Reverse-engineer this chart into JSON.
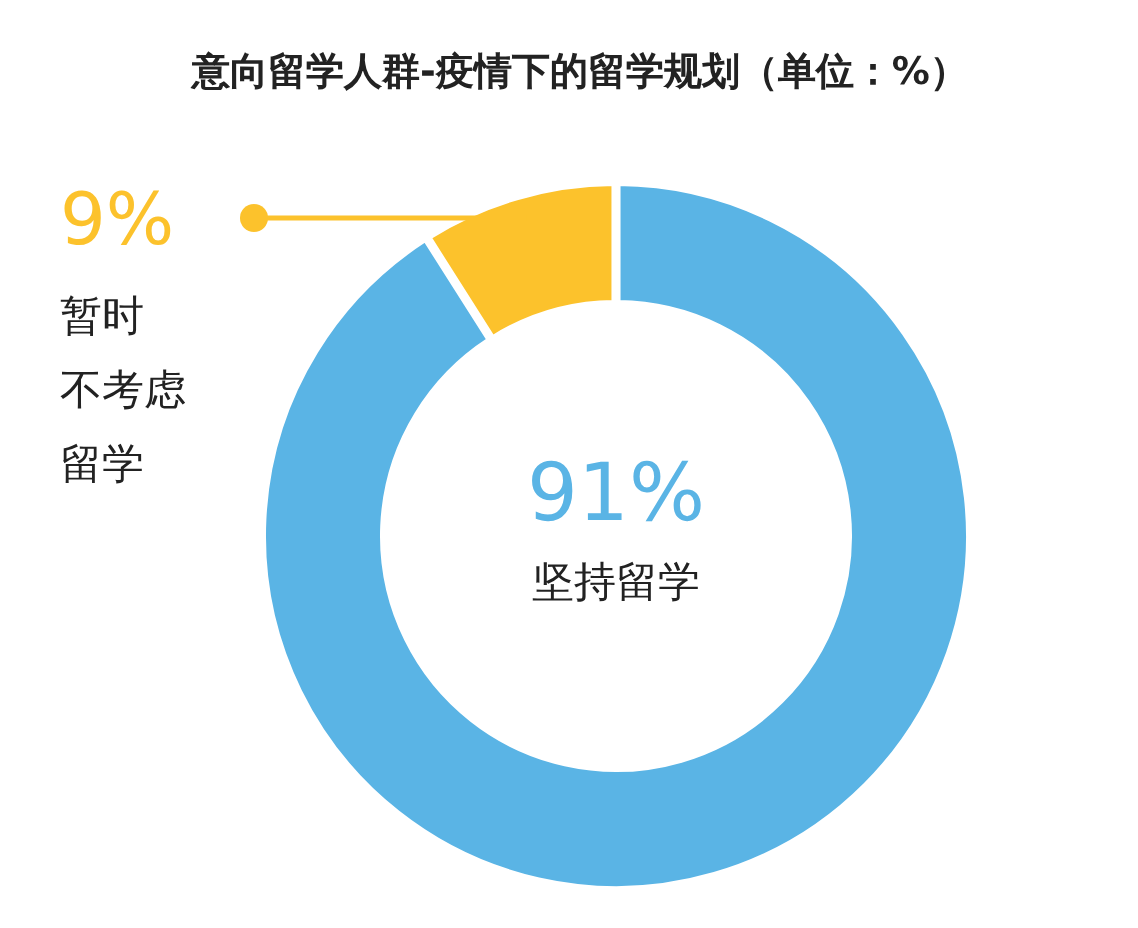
{
  "chart_data": {
    "type": "donut",
    "title": "意向留学人群-疫情下的留学规划（单位：%）",
    "categories": [
      "坚持留学",
      "暂时不考虑留学"
    ],
    "values": [
      91,
      9
    ],
    "colors": [
      "#5ab4e5",
      "#fcc22c"
    ],
    "value_labels": [
      "91%",
      "9%"
    ]
  }
}
